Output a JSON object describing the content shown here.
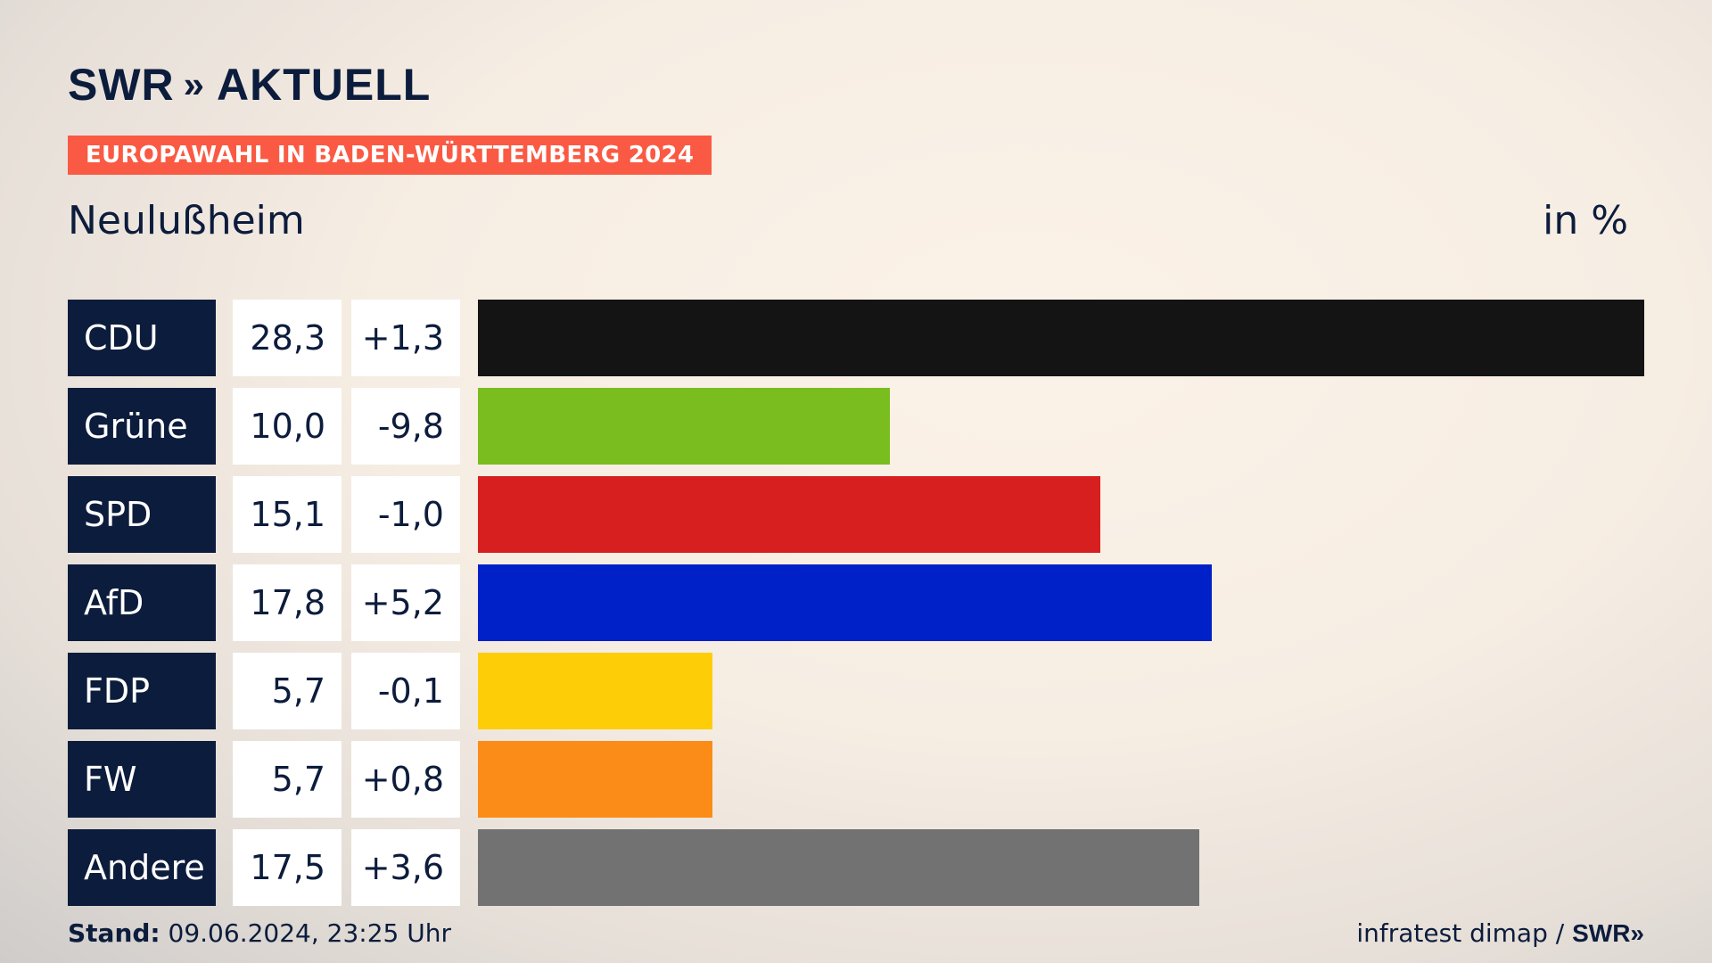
{
  "brand": {
    "logo_left": "SWR",
    "logo_chevrons": "»",
    "logo_right": "AKTUELL"
  },
  "header": {
    "tag": "EUROPAWAHL IN BADEN-WÜRTTEMBERG 2024",
    "region": "Neulußheim",
    "unit": "in %"
  },
  "chart_data": {
    "type": "bar",
    "orientation": "horizontal",
    "title": "EUROPAWAHL IN BADEN-WÜRTTEMBERG 2024",
    "subtitle": "Neulußheim",
    "unit": "in %",
    "categories": [
      "CDU",
      "Grüne",
      "SPD",
      "AfD",
      "FDP",
      "FW",
      "Andere"
    ],
    "values": [
      28.3,
      10.0,
      15.1,
      17.8,
      5.7,
      5.7,
      17.5
    ],
    "value_labels": [
      "28,3",
      "10,0",
      "15,1",
      "17,8",
      "5,7",
      "5,7",
      "17,5"
    ],
    "diffs": [
      1.3,
      -9.8,
      -1.0,
      5.2,
      -0.1,
      0.8,
      3.6
    ],
    "diff_labels": [
      "+1,3",
      "-9,8",
      "-1,0",
      "+5,2",
      "-0,1",
      "+0,8",
      "+3,6"
    ],
    "colors": [
      "#141414",
      "#7abd1f",
      "#d81f1f",
      "#0020c8",
      "#fdcd08",
      "#fb8c18",
      "#727272"
    ],
    "xlim": [
      0,
      28.3
    ],
    "grid": false,
    "legend": "none"
  },
  "footer": {
    "stand_label": "Stand:",
    "stand_value": "09.06.2024, 23:25 Uhr",
    "source": "infratest dimap /",
    "source_logo": "SWR»"
  }
}
